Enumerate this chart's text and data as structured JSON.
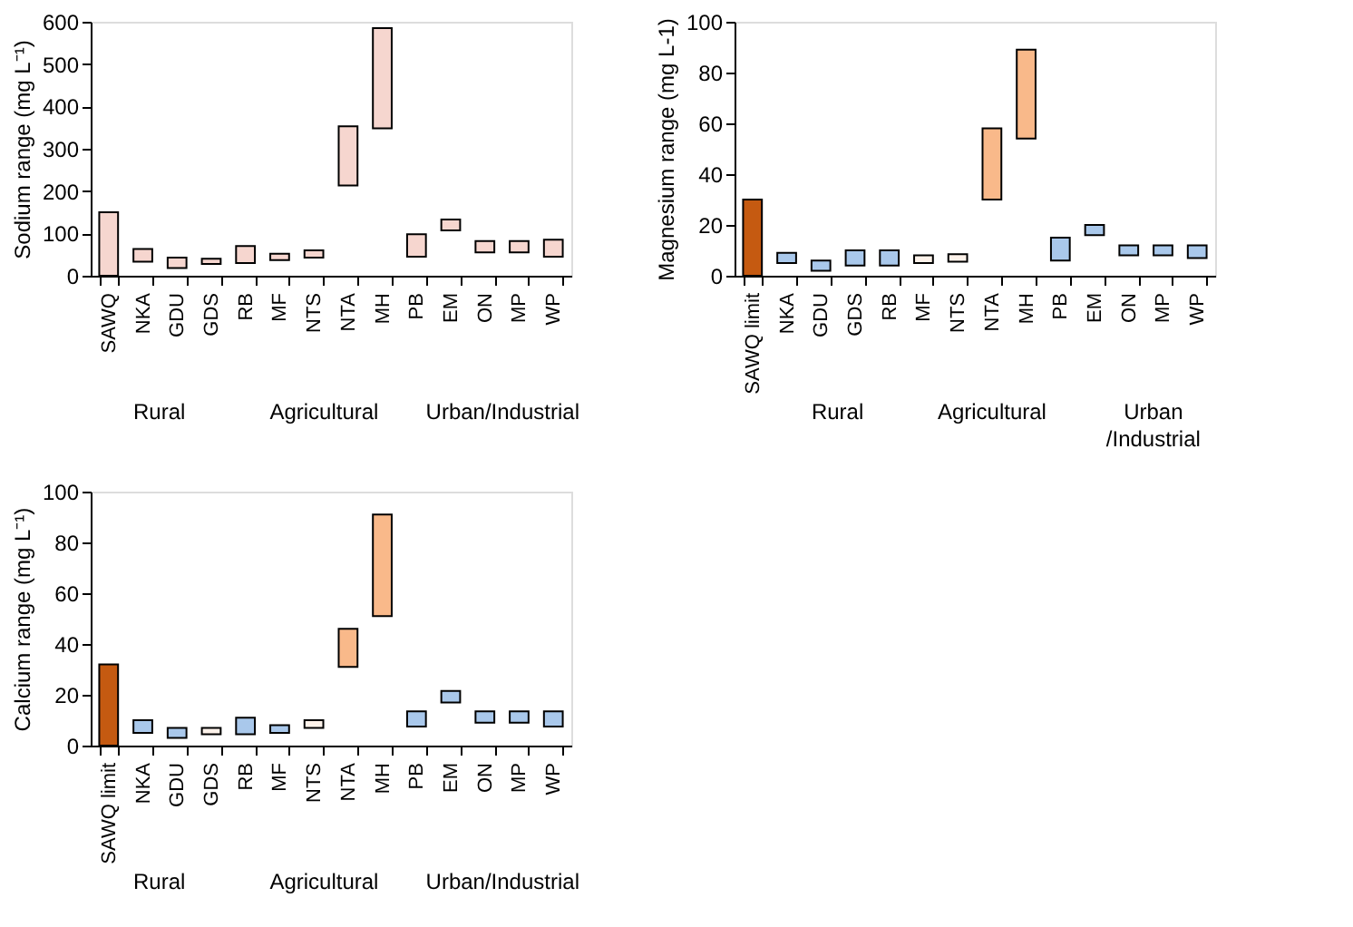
{
  "chart_data": [
    {
      "type": "bar",
      "ylabel": "Sodium range (mg L⁻¹)",
      "categories": [
        "SAWQ",
        "NKA",
        "GDU",
        "GDS",
        "RB",
        "MF",
        "NTS",
        "NTA",
        "MH",
        "PB",
        "EM",
        "ON",
        "MP",
        "WP"
      ],
      "base": [
        0,
        33,
        18,
        28,
        30,
        37,
        43,
        213,
        348,
        45,
        107,
        55,
        55,
        45
      ],
      "values": [
        150,
        30,
        25,
        12,
        40,
        15,
        17,
        140,
        237,
        53,
        26,
        27,
        27,
        40
      ],
      "colors": [
        "#f6d6cf",
        "#f6d6cf",
        "#f6d6cf",
        "#f6d6cf",
        "#f6d6cf",
        "#f6d6cf",
        "#f6d6cf",
        "#f6d6cf",
        "#f6d6cf",
        "#f6d6cf",
        "#f6d6cf",
        "#f6d6cf",
        "#f6d6cf",
        "#f6d6cf"
      ],
      "ylim": [
        0,
        600
      ],
      "yticks": [
        0,
        100,
        200,
        300,
        400,
        500,
        600
      ],
      "annotations": [
        "Rural",
        "Agricultural",
        "Urban/Industrial"
      ]
    },
    {
      "type": "bar",
      "ylabel": "Magnesium range (mg L-1)",
      "categories": [
        "SAWQ limit",
        "NKA",
        "GDU",
        "GDS",
        "RB",
        "MF",
        "NTS",
        "NTA",
        "MH",
        "PB",
        "EM",
        "ON",
        "MP",
        "WP"
      ],
      "base": [
        0,
        5,
        2,
        4,
        4,
        5,
        5.5,
        30,
        54,
        6,
        16,
        8,
        8,
        7
      ],
      "values": [
        30,
        4,
        4,
        6,
        6,
        3,
        3,
        28,
        35,
        9,
        4,
        4,
        4,
        5
      ],
      "colors": [
        "#c55a11",
        "#a9c8eb",
        "#a9c8eb",
        "#a9c8eb",
        "#a9c8eb",
        "#fdf2ea",
        "#fdf2ea",
        "#f9b98a",
        "#f9b98a",
        "#a9c8eb",
        "#a9c8eb",
        "#a9c8eb",
        "#a9c8eb",
        "#a9c8eb"
      ],
      "ylim": [
        0,
        100
      ],
      "yticks": [
        0,
        20,
        40,
        60,
        80,
        100
      ],
      "annotations": [
        "Rural",
        "Agricultural",
        "Urban\n/Industrial"
      ]
    },
    {
      "type": "bar",
      "ylabel": "Calcium range (mg L⁻¹)",
      "categories": [
        "SAWQ limit",
        "NKA",
        "GDU",
        "GDS",
        "RB",
        "MF",
        "NTS",
        "NTA",
        "MH",
        "PB",
        "EM",
        "ON",
        "MP",
        "WP"
      ],
      "base": [
        0,
        5,
        3,
        4.5,
        4.5,
        5,
        7,
        31,
        51,
        7.5,
        17,
        9,
        9,
        7.5
      ],
      "values": [
        32,
        5,
        4,
        2.5,
        6.5,
        3,
        3,
        15,
        40,
        6,
        4.5,
        4.5,
        4.5,
        6
      ],
      "colors": [
        "#c55a11",
        "#a9c8eb",
        "#a9c8eb",
        "#fdf2ea",
        "#a9c8eb",
        "#a9c8eb",
        "#fdf2ea",
        "#f9b98a",
        "#f9b98a",
        "#a9c8eb",
        "#a9c8eb",
        "#a9c8eb",
        "#a9c8eb",
        "#a9c8eb"
      ],
      "ylim": [
        0,
        100
      ],
      "yticks": [
        0,
        20,
        40,
        60,
        80,
        100
      ],
      "annotations": [
        "Rural",
        "Agricultural",
        "Urban/Industrial"
      ]
    }
  ]
}
